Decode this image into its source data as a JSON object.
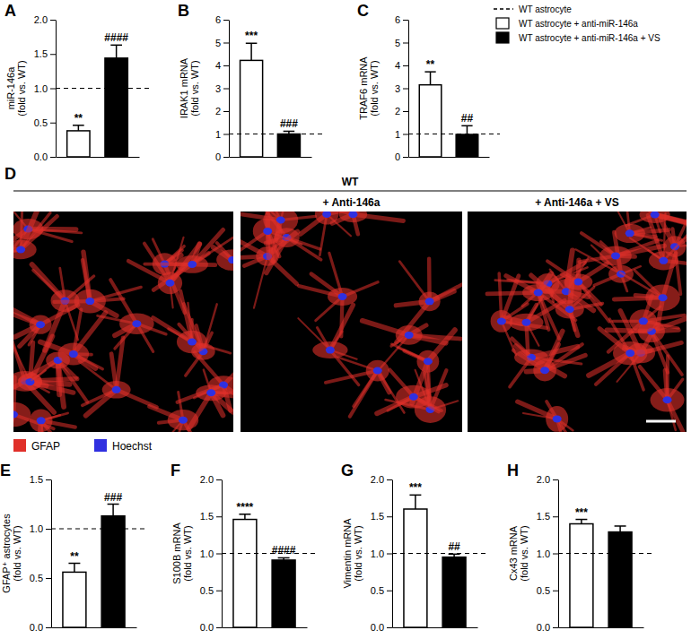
{
  "chart_data": [
    {
      "type": "bar",
      "panel": "A",
      "y_label": [
        "miR-146a",
        "(fold vs. WT)"
      ],
      "categories": [
        null,
        null
      ],
      "values": [
        0.38,
        1.44
      ],
      "errors": [
        0.08,
        0.19
      ],
      "annotations": [
        "**",
        "####"
      ],
      "colors": [
        "#ffffff",
        "#000000"
      ],
      "baseline": 1,
      "ylim": [
        0,
        2
      ],
      "yticks": [
        {
          "value": 0,
          "label": "0.0"
        },
        {
          "value": 0.5,
          "label": "0.5"
        },
        {
          "value": 1,
          "label": "1.0"
        },
        {
          "value": 1.5,
          "label": "1.5"
        },
        {
          "value": 2,
          "label": "2.0"
        }
      ],
      "grid": false
    },
    {
      "type": "bar",
      "panel": "B",
      "y_label": [
        "IRAK1 mRNA",
        "(fold vs. WT)"
      ],
      "categories": [
        null,
        null
      ],
      "values": [
        4.22,
        1.0
      ],
      "errors": [
        0.75,
        0.12
      ],
      "annotations": [
        "***",
        "###"
      ],
      "colors": [
        "#ffffff",
        "#000000"
      ],
      "baseline": 1,
      "ylim": [
        0,
        6
      ],
      "yticks": [
        0,
        1,
        2,
        3,
        4,
        5,
        6
      ],
      "grid": false
    },
    {
      "type": "bar",
      "panel": "C",
      "y_label": [
        "TRAF6 mRNA",
        "(fold vs. WT)"
      ],
      "categories": [
        null,
        null
      ],
      "values": [
        3.15,
        0.98
      ],
      "errors": [
        0.57,
        0.38
      ],
      "annotations": [
        "**",
        "##"
      ],
      "colors": [
        "#ffffff",
        "#000000"
      ],
      "baseline": 1,
      "ylim": [
        0,
        6
      ],
      "yticks": [
        0,
        1,
        2,
        3,
        4,
        5,
        6
      ],
      "grid": false
    },
    {
      "type": "bar",
      "panel": "E",
      "y_label": [
        "GFAP⁺ astrocytes",
        "(fold vs. WT)"
      ],
      "categories": [
        null,
        null
      ],
      "values": [
        0.56,
        1.13
      ],
      "errors": [
        0.09,
        0.12
      ],
      "annotations": [
        "**",
        "###"
      ],
      "colors": [
        "#ffffff",
        "#000000"
      ],
      "baseline": 1,
      "ylim": [
        0,
        1.5
      ],
      "yticks": [
        {
          "value": 0,
          "label": "0.0"
        },
        {
          "value": 0.5,
          "label": "0.5"
        },
        {
          "value": 1,
          "label": "1.0"
        },
        {
          "value": 1.5,
          "label": "1.5"
        }
      ],
      "grid": false
    },
    {
      "type": "bar",
      "panel": "F",
      "y_label": [
        "S100B mRNA",
        "(fold vs. WT)"
      ],
      "categories": [
        null,
        null
      ],
      "values": [
        1.46,
        0.91
      ],
      "errors": [
        0.07,
        0.03
      ],
      "annotations": [
        "****",
        "####"
      ],
      "colors": [
        "#ffffff",
        "#000000"
      ],
      "baseline": 1,
      "ylim": [
        0,
        2
      ],
      "yticks": [
        {
          "value": 0,
          "label": "0.0"
        },
        {
          "value": 0.5,
          "label": "0.5"
        },
        {
          "value": 1,
          "label": "1.0"
        },
        {
          "value": 1.5,
          "label": "1.5"
        },
        {
          "value": 2,
          "label": "2.0"
        }
      ],
      "grid": false
    },
    {
      "type": "bar",
      "panel": "G",
      "y_label": [
        "Vimentin mRNA",
        "(fold vs. WT)"
      ],
      "categories": [
        null,
        null
      ],
      "values": [
        1.6,
        0.95
      ],
      "errors": [
        0.19,
        0.04
      ],
      "annotations": [
        "***",
        "##"
      ],
      "colors": [
        "#ffffff",
        "#000000"
      ],
      "baseline": 1,
      "ylim": [
        0,
        2
      ],
      "yticks": [
        {
          "value": 0,
          "label": "0.0"
        },
        {
          "value": 0.5,
          "label": "0.5"
        },
        {
          "value": 1,
          "label": "1.0"
        },
        {
          "value": 1.5,
          "label": "1.5"
        },
        {
          "value": 2,
          "label": "2.0"
        }
      ],
      "grid": false
    },
    {
      "type": "bar",
      "panel": "H",
      "y_label": [
        "Cx43 mRNA",
        "(fold vs. WT)"
      ],
      "categories": [
        null,
        null
      ],
      "values": [
        1.4,
        1.29
      ],
      "errors": [
        0.06,
        0.08
      ],
      "annotations": [
        "***",
        null
      ],
      "colors": [
        "#ffffff",
        "#000000"
      ],
      "baseline": 1,
      "ylim": [
        0,
        2
      ],
      "yticks": [
        {
          "value": 0,
          "label": "0.0"
        },
        {
          "value": 0.5,
          "label": "0.5"
        },
        {
          "value": 1,
          "label": "1.0"
        },
        {
          "value": 1.5,
          "label": "1.5"
        },
        {
          "value": 2,
          "label": "2.0"
        }
      ],
      "grid": false
    }
  ],
  "figure_legend": [
    {
      "name": "WT astrocyte",
      "line_style": "dashed"
    },
    {
      "name": "WT astrocyte + anti-miR-146a",
      "color": "#ffffff"
    },
    {
      "name": "WT astrocyte + anti-miR-146a + VS",
      "color": "#000000"
    }
  ],
  "micrograph": {
    "panel": "D",
    "group": "WT",
    "column_titles": [
      null,
      "+ Anti-146a",
      "+ Anti-146a + VS"
    ],
    "stains": [
      {
        "name": "GFAP",
        "color": "#e0302a"
      },
      {
        "name": "Hoechst",
        "color": "#3030e0"
      }
    ]
  }
}
